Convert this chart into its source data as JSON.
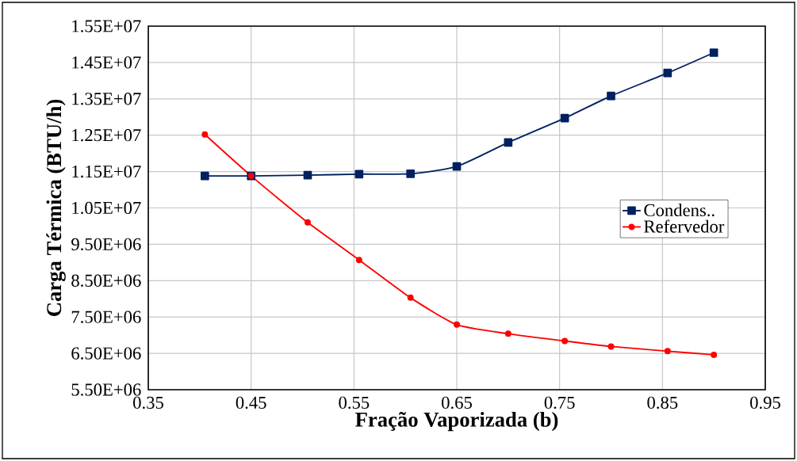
{
  "chart_data": {
    "type": "line",
    "xlabel": "Fração Vaporizada (b)",
    "ylabel": "Carga Térmica (BTU/h)",
    "x": [
      0.405,
      0.45,
      0.505,
      0.555,
      0.605,
      0.65,
      0.7,
      0.755,
      0.8,
      0.855,
      0.9
    ],
    "series": [
      {
        "name": "Condens..",
        "color": "#002060",
        "marker": "square",
        "values": [
          11380000,
          11380000,
          11400000,
          11430000,
          11440000,
          11640000,
          12300000,
          12970000,
          13580000,
          14210000,
          14770000
        ]
      },
      {
        "name": "Refervedor",
        "color": "#ff0000",
        "marker": "circle",
        "values": [
          12520000,
          11380000,
          10100000,
          9070000,
          8030000,
          7290000,
          7040000,
          6840000,
          6690000,
          6560000,
          6460000
        ]
      }
    ],
    "xlim": [
      0.35,
      0.95
    ],
    "xticks": [
      0.35,
      0.45,
      0.55,
      0.65,
      0.75,
      0.85,
      0.95
    ],
    "ylim": [
      5500000,
      15500000
    ],
    "yticks": [
      {
        "value": 5500000,
        "label": "5.50E+06"
      },
      {
        "value": 6500000,
        "label": "6.50E+06"
      },
      {
        "value": 7500000,
        "label": "7.50E+06"
      },
      {
        "value": 8500000,
        "label": "8.50E+06"
      },
      {
        "value": 9500000,
        "label": "9.50E+06"
      },
      {
        "value": 10500000,
        "label": "1.05E+07"
      },
      {
        "value": 11500000,
        "label": "1.15E+07"
      },
      {
        "value": 12500000,
        "label": "1.25E+07"
      },
      {
        "value": 13500000,
        "label": "1.35E+07"
      },
      {
        "value": 14500000,
        "label": "1.45E+07"
      },
      {
        "value": 15500000,
        "label": "1.55E+07"
      }
    ],
    "grid": true,
    "legend": "right",
    "line_style": "solid"
  }
}
